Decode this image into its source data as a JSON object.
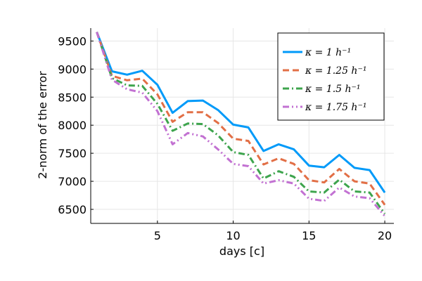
{
  "chart_data": {
    "type": "line",
    "title": "",
    "xlabel": "days [c]",
    "ylabel": "2-norm of the error",
    "xlim": [
      0.6,
      20.6
    ],
    "ylim": [
      6250,
      9730
    ],
    "x_ticks": [
      5,
      10,
      15,
      20
    ],
    "x_tick_labels": [
      "5",
      "10",
      "15",
      "20"
    ],
    "y_ticks": [
      6500,
      7000,
      7500,
      8000,
      8500,
      9000,
      9500
    ],
    "y_tick_labels": [
      "6500",
      "7000",
      "7500",
      "8000",
      "8500",
      "9000",
      "9500"
    ],
    "grid": true,
    "legend_position": "top-right",
    "x": [
      1,
      2,
      3,
      4,
      5,
      6,
      7,
      8,
      9,
      10,
      11,
      12,
      13,
      14,
      15,
      16,
      17,
      18,
      19,
      20
    ],
    "series": [
      {
        "name": "κ = 1 h⁻¹",
        "color": "#009af9",
        "dash": "solid",
        "values": [
          9660,
          8960,
          8900,
          8970,
          8720,
          8220,
          8430,
          8440,
          8270,
          8010,
          7960,
          7540,
          7660,
          7570,
          7280,
          7250,
          7470,
          7240,
          7200,
          6800
        ]
      },
      {
        "name": "κ = 1.25 h⁻¹",
        "color": "#e26f46",
        "dash": "dashed",
        "values": [
          9660,
          8880,
          8800,
          8830,
          8550,
          8060,
          8230,
          8230,
          8040,
          7760,
          7720,
          7300,
          7410,
          7310,
          7020,
          6980,
          7220,
          7000,
          6960,
          6580
        ]
      },
      {
        "name": "κ = 1.5 h⁻¹",
        "color": "#3da44d",
        "dash": "dashdot",
        "values": [
          9660,
          8840,
          8710,
          8700,
          8380,
          7900,
          8030,
          8020,
          7820,
          7520,
          7470,
          7050,
          7180,
          7080,
          6820,
          6800,
          7030,
          6820,
          6800,
          6420
        ]
      },
      {
        "name": "κ = 1.75 h⁻¹",
        "color": "#c271d2",
        "dash": "dashdotdot",
        "values": [
          9660,
          8810,
          8640,
          8580,
          8250,
          7660,
          7860,
          7800,
          7570,
          7310,
          7270,
          6960,
          7020,
          6960,
          6690,
          6650,
          6890,
          6730,
          6700,
          6380
        ]
      }
    ]
  }
}
